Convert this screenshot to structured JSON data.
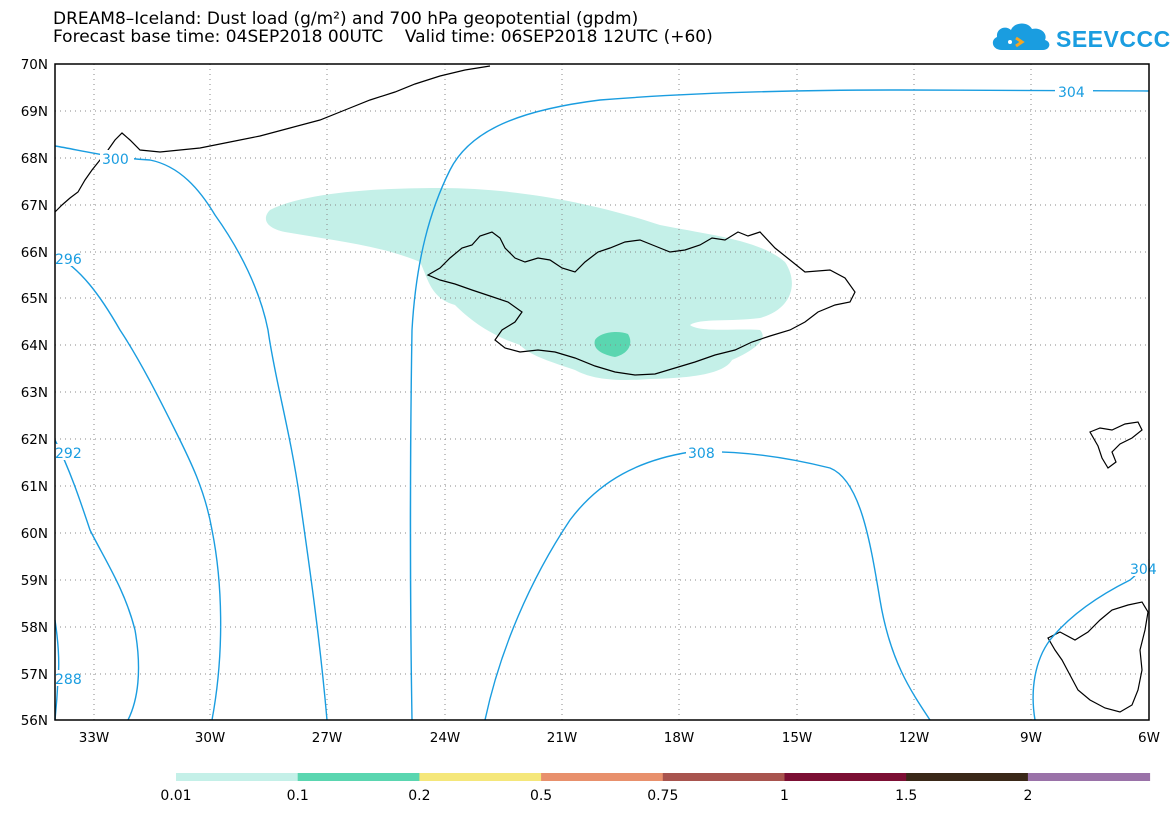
{
  "title": {
    "line1": "DREAM8–Iceland: Dust load (g/m²) and 700 hPa geopotential (gpdm)",
    "line2": "Forecast base time: 04SEP2018 00UTC    Valid time: 06SEP2018 12UTC (+60)"
  },
  "logo": {
    "text": "SEEVCCC",
    "icon": "cloud-icon"
  },
  "lat_labels": [
    "70N",
    "69N",
    "68N",
    "67N",
    "66N",
    "65N",
    "64N",
    "63N",
    "62N",
    "61N",
    "60N",
    "59N",
    "58N",
    "57N",
    "56N"
  ],
  "lon_labels": [
    "33W",
    "30W",
    "27W",
    "24W",
    "21W",
    "18W",
    "15W",
    "12W",
    "9W",
    "6W"
  ],
  "contour_labels": [
    "304",
    "300",
    "296",
    "292",
    "308",
    "304",
    "288"
  ],
  "colorbar": {
    "labels": [
      "0.01",
      "0.1",
      "0.2",
      "0.5",
      "0.75",
      "1",
      "1.5",
      "2"
    ],
    "colors": [
      "#c4f0e8",
      "#5ad6b0",
      "#f5e77a",
      "#e8906c",
      "#a8544e",
      "#7c0f34",
      "#3a2818",
      "#9a72a8"
    ]
  },
  "colors": {
    "contour": "#1a9de0",
    "dust_low": "#c4f0e8",
    "dust_mid": "#5ad6b0"
  }
}
